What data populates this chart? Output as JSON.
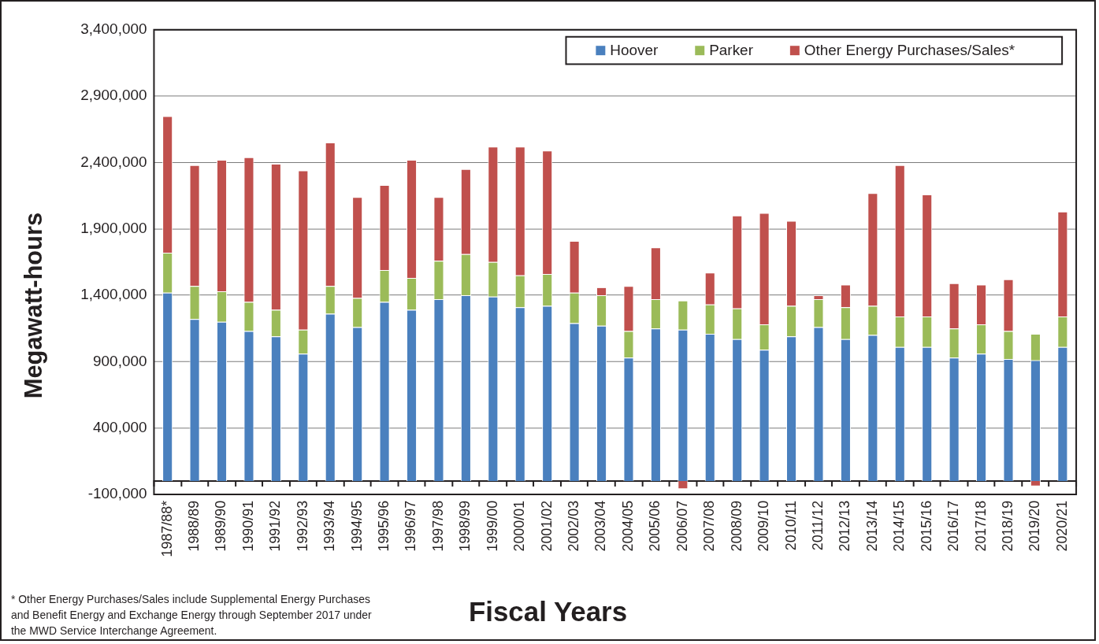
{
  "chart_data": {
    "type": "bar",
    "stacked": true,
    "categories": [
      "1987/88*",
      "1988/89",
      "1989/90",
      "1990/91",
      "1991/92",
      "1992/93",
      "1993/94",
      "1994/95",
      "1995/96",
      "1996/97",
      "1997/98",
      "1998/99",
      "1999/00",
      "2000/01",
      "2001/02",
      "2002/03",
      "2003/04",
      "2004/05",
      "2005/06",
      "2006/07",
      "2007/08",
      "2008/09",
      "2009/10",
      "2010/11",
      "2011/12",
      "2012/13",
      "2013/14",
      "2014/15",
      "2015/16",
      "2016/17",
      "2017/18",
      "2018/19",
      "2019/20",
      "2020/21"
    ],
    "series": [
      {
        "name": "Hoover",
        "color": "#4a80be",
        "values": [
          1420000,
          1220000,
          1200000,
          1130000,
          1090000,
          960000,
          1260000,
          1160000,
          1350000,
          1290000,
          1370000,
          1400000,
          1390000,
          1310000,
          1320000,
          1190000,
          1170000,
          930000,
          1150000,
          1140000,
          1110000,
          1070000,
          990000,
          1090000,
          1160000,
          1070000,
          1100000,
          1010000,
          1010000,
          930000,
          960000,
          920000,
          910000,
          1010000
        ]
      },
      {
        "name": "Parker",
        "color": "#9bbb59",
        "values": [
          300000,
          250000,
          230000,
          220000,
          200000,
          180000,
          210000,
          220000,
          240000,
          240000,
          290000,
          310000,
          260000,
          240000,
          240000,
          230000,
          230000,
          200000,
          220000,
          220000,
          220000,
          230000,
          190000,
          230000,
          210000,
          240000,
          220000,
          230000,
          230000,
          220000,
          220000,
          210000,
          200000,
          230000
        ]
      },
      {
        "name": "Other Energy Purchases/Sales*",
        "color": "#c0504d",
        "values": [
          1030000,
          910000,
          990000,
          1090000,
          1100000,
          1200000,
          1080000,
          760000,
          640000,
          890000,
          480000,
          640000,
          870000,
          970000,
          930000,
          390000,
          60000,
          340000,
          390000,
          -60000,
          240000,
          700000,
          840000,
          640000,
          30000,
          170000,
          850000,
          1140000,
          920000,
          340000,
          300000,
          390000,
          -40000,
          790000
        ]
      }
    ],
    "ylabel": "Megawatt-hours",
    "xlabel": "Fiscal Years",
    "ylim": [
      -100000,
      3400000
    ],
    "yticks": [
      {
        "value": -100000,
        "label": "-100,000"
      },
      {
        "value": 400000,
        "label": "400,000"
      },
      {
        "value": 900000,
        "label": "900,000"
      },
      {
        "value": 1400000,
        "label": "1,400,000"
      },
      {
        "value": 1900000,
        "label": "1,900,000"
      },
      {
        "value": 2400000,
        "label": "2,400,000"
      },
      {
        "value": 2900000,
        "label": "2,900,000"
      },
      {
        "value": 3400000,
        "label": "3,400,000"
      }
    ],
    "grid": "y",
    "legend": "top right",
    "annotations": [
      "* Other Energy Purchases/Sales include Supplemental Energy Purchases and Benefit Energy and Exchange Energy through September 2017 under the MWD Service Interchange Agreement."
    ]
  }
}
